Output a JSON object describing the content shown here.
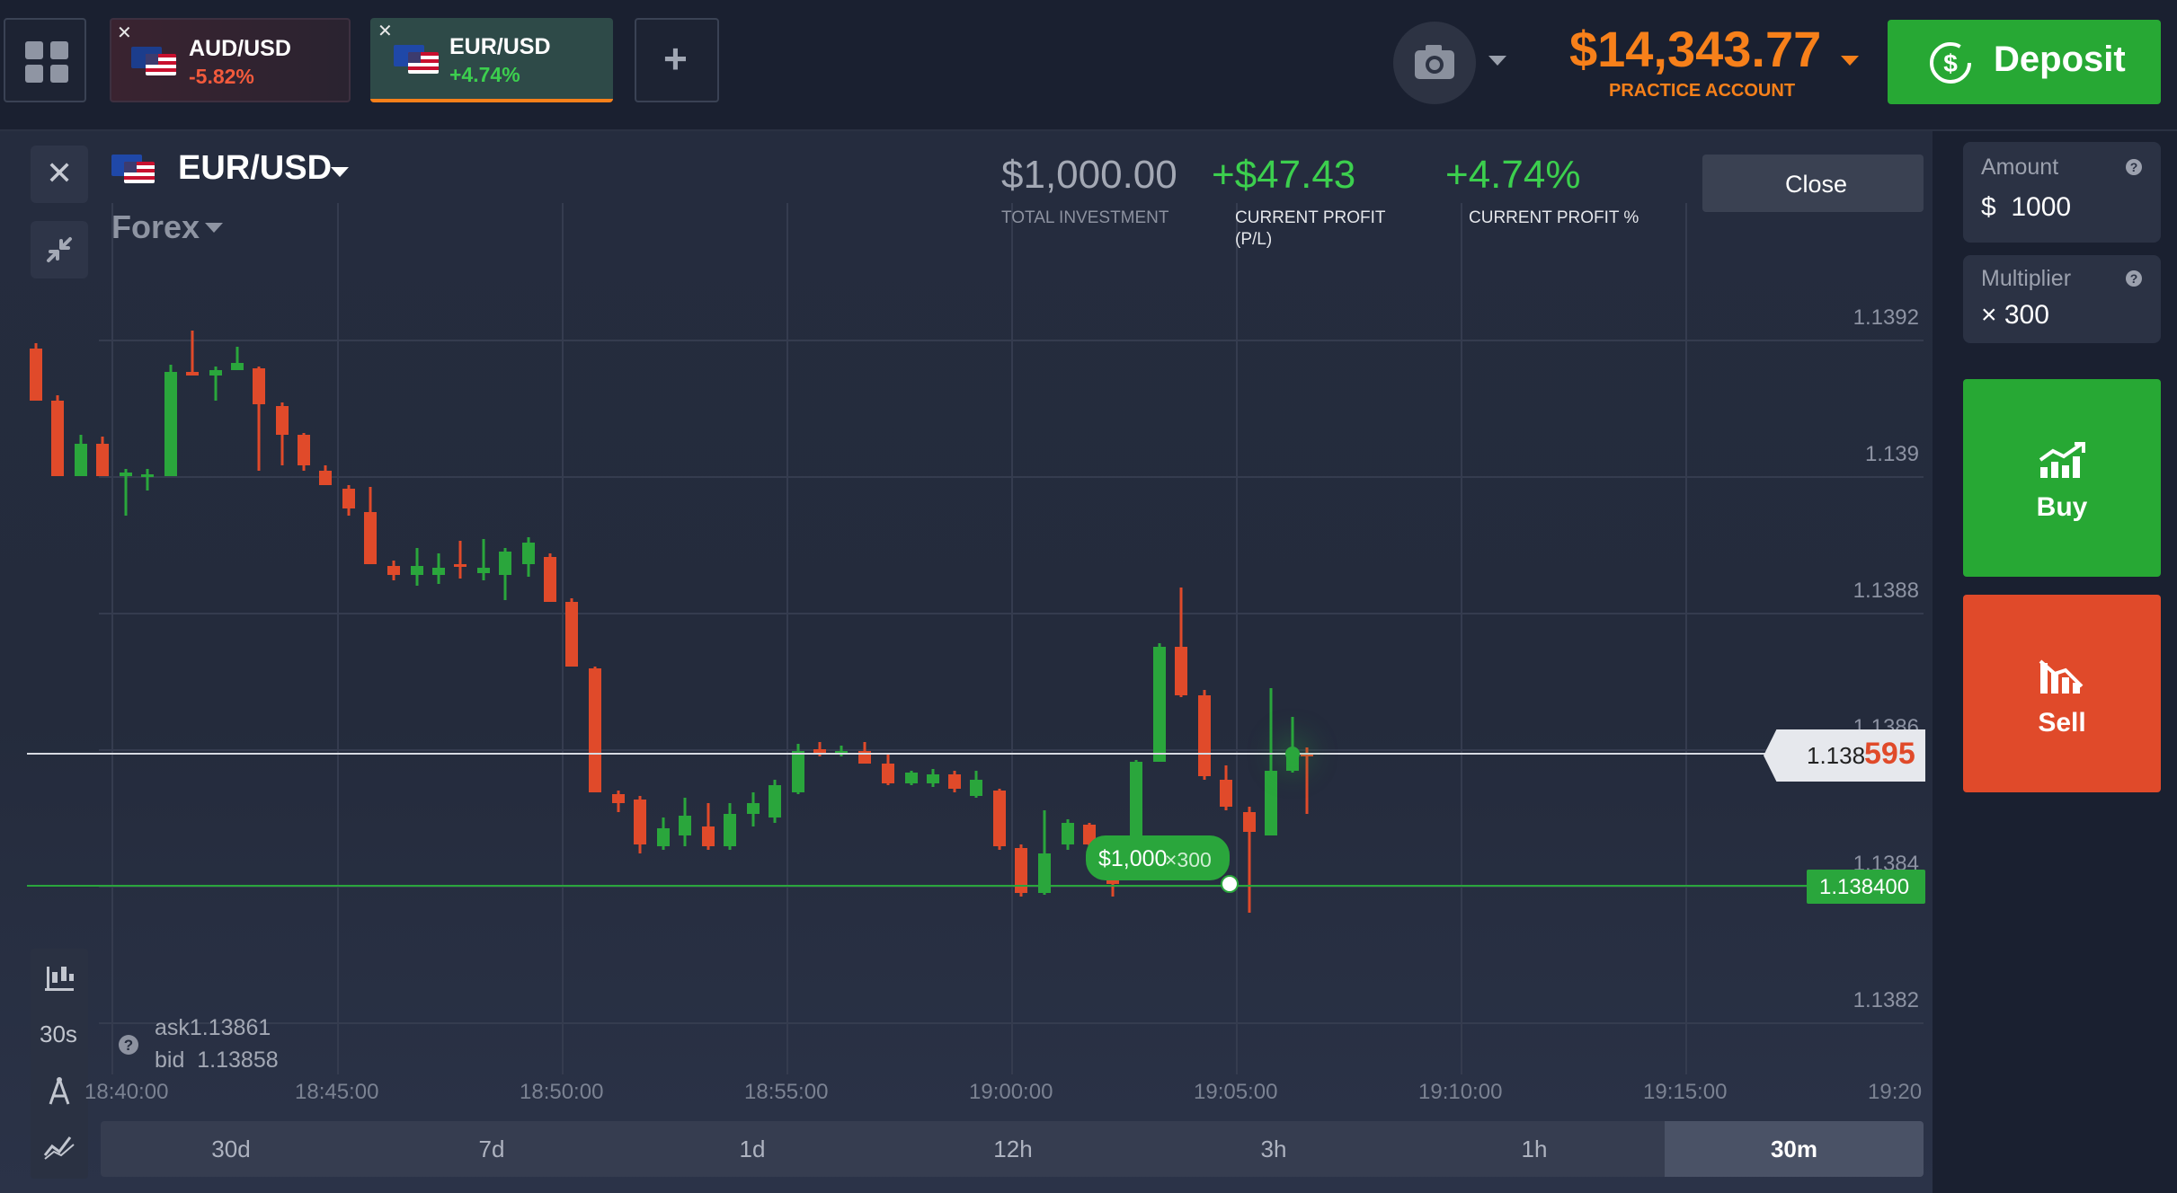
{
  "topbar": {
    "tabs": [
      {
        "name": "AUD/USD",
        "change": "-5.82%"
      },
      {
        "name": "EUR/USD",
        "change": "+4.74%"
      }
    ],
    "add_label": "+",
    "balance": "$14,343.77",
    "account_type": "PRACTICE ACCOUNT",
    "deposit_label": "Deposit"
  },
  "asset": {
    "name": "EUR/USD",
    "category": "Forex"
  },
  "stats": {
    "investment": "$1,000.00",
    "investment_label": "TOTAL INVESTMENT",
    "profit": "+$47.43",
    "profit_label_1": "CURRENT PROFIT",
    "profit_label_2": "(P/L)",
    "profit_pct": "+4.74%",
    "profit_pct_label": "CURRENT PROFIT %",
    "close_label": "Close"
  },
  "trade": {
    "amount_label": "Amount",
    "amount_value": "$  1000",
    "multiplier_label": "Multiplier",
    "multiplier_value": "× 300",
    "buy_label": "Buy",
    "sell_label": "Sell"
  },
  "chart": {
    "price_labels": [
      "1.1392",
      "1.139",
      "1.1388",
      "1.1386",
      "1.1384",
      "1.1382"
    ],
    "time_labels": [
      "18:40:00",
      "18:45:00",
      "18:50:00",
      "18:55:00",
      "19:00:00",
      "19:05:00",
      "19:10:00",
      "19:15:00",
      "19:20"
    ],
    "current_price_main": "1.138",
    "current_price_tail": "595",
    "entry_price": "1.138400",
    "position_badge_amount": "$1,000",
    "position_badge_mult": "×300",
    "ask": "ask1.13861",
    "bid": "bid  1.13858",
    "timeframe": "30s"
  },
  "periods": [
    "30d",
    "7d",
    "1d",
    "12h",
    "3h",
    "1h",
    "30m"
  ],
  "active_period": "30m",
  "colors": {
    "up": "#2aa63c",
    "down": "#e04a2a",
    "accent_orange": "#f7801a",
    "deposit_green": "#27a834"
  }
}
